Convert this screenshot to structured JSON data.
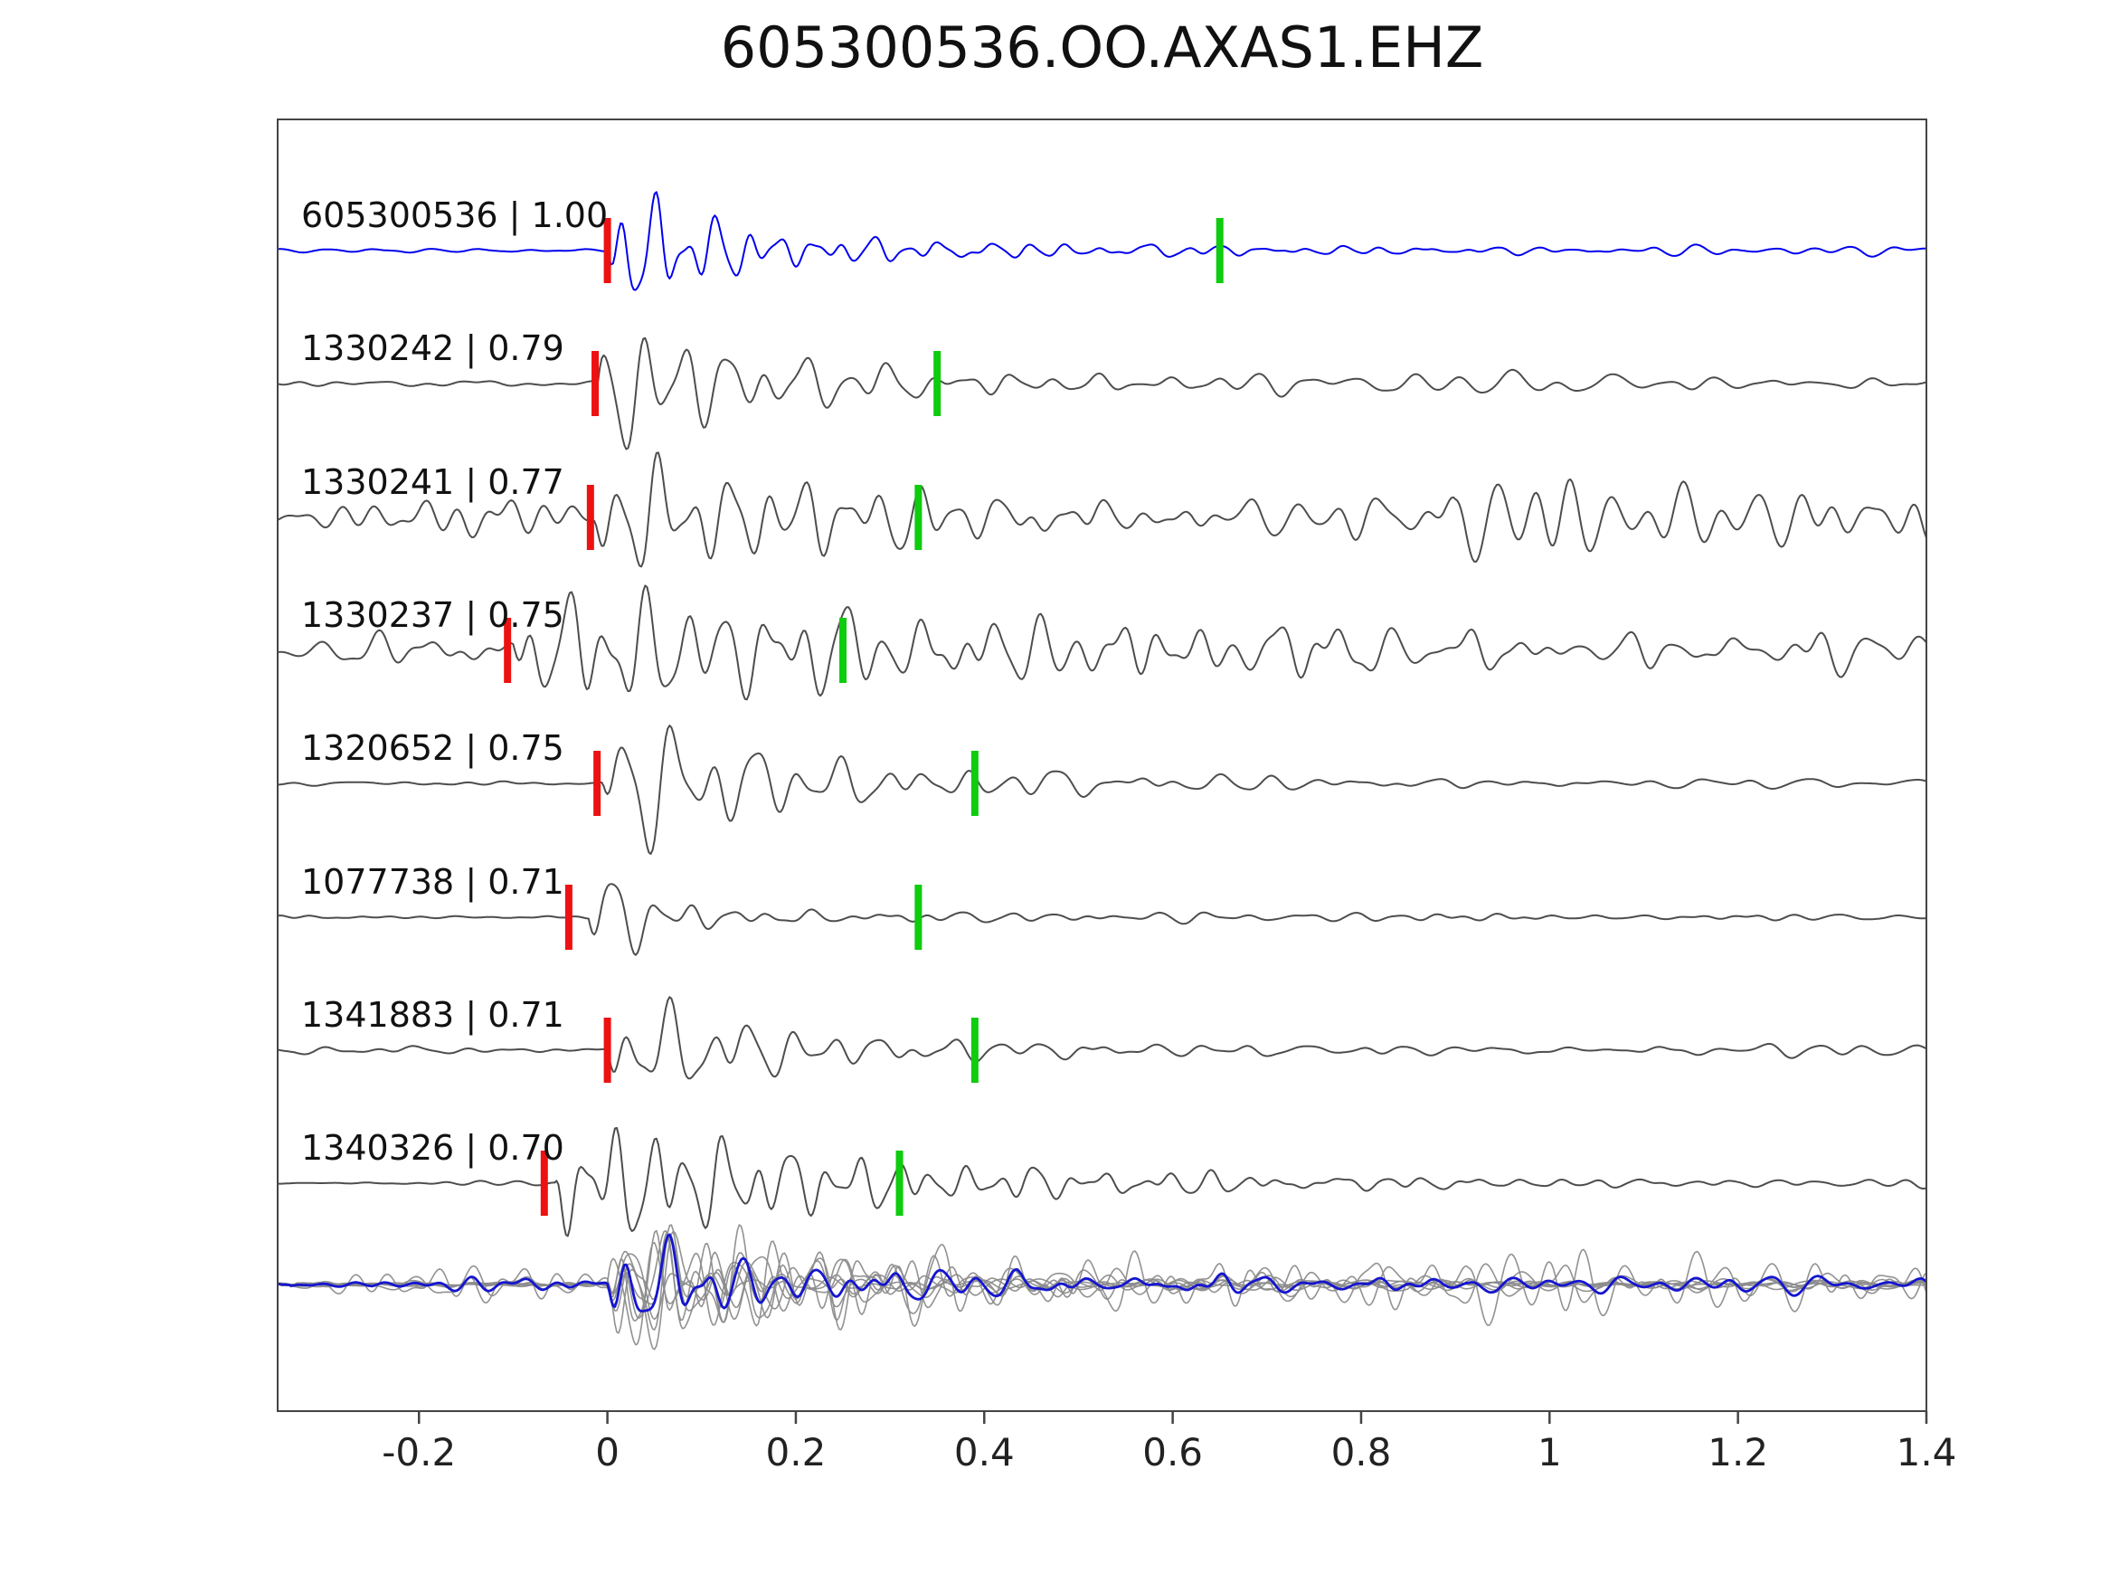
{
  "chart_data": {
    "type": "line",
    "title": "605300536.OO.AXAS1.EHZ",
    "xlabel": "",
    "ylabel": "",
    "xlim": [
      -0.35,
      1.4
    ],
    "grid": false,
    "legend": "none",
    "x_ticks": [
      -0.2,
      0,
      0.2,
      0.4,
      0.6,
      0.8,
      1,
      1.2,
      1.4
    ],
    "x_tick_labels": [
      "-0.2",
      "0",
      "0.2",
      "0.4",
      "0.6",
      "0.8",
      "1",
      "1.2",
      "1.4"
    ],
    "colors": {
      "reference_trace": "#0000ee",
      "match_trace": "#4d4d4d",
      "stack_member": "#8c8c8c",
      "stack_mean": "#1515d0",
      "pick_red": "#ee1111",
      "pick_green": "#0ecc0e",
      "axis": "#444444",
      "tick_label": "#222222",
      "trace_label": "#111111"
    },
    "traces": [
      {
        "id": "605300536",
        "similarity": "1.00",
        "label": "605300536 | 1.00",
        "role": "reference",
        "red_pick": 0.0,
        "green_pick": 0.65,
        "synth": {
          "seed": 11,
          "onset": 0.0,
          "noise": 1.5,
          "amp": 62,
          "freq": 30,
          "decay": 0.1,
          "coda": 0.14,
          "tail": 4
        }
      },
      {
        "id": "1330242",
        "similarity": "0.79",
        "label": "1330242 | 0.79",
        "role": "match",
        "red_pick": -0.013,
        "green_pick": 0.35,
        "synth": {
          "seed": 22,
          "onset": -0.01,
          "noise": 5,
          "amp": 60,
          "freq": 23,
          "decay": 0.13,
          "coda": 0.22,
          "tail": 6
        }
      },
      {
        "id": "1330241",
        "similarity": "0.77",
        "label": "1330241 | 0.77",
        "role": "match",
        "red_pick": -0.018,
        "green_pick": 0.33,
        "synth": {
          "seed": 33,
          "onset": -0.015,
          "noise": 17,
          "amp": 46,
          "freq": 25,
          "decay": 0.22,
          "coda": 0.35,
          "tail": 7,
          "late": {
            "t": 0.9,
            "amp": 50,
            "decay": 0.45
          }
        }
      },
      {
        "id": "1330237",
        "similarity": "0.75",
        "label": "1330237 | 0.75",
        "role": "match",
        "red_pick": -0.106,
        "green_pick": 0.25,
        "synth": {
          "seed": 44,
          "onset": -0.1,
          "noise": 14,
          "amp": 44,
          "freq": 24,
          "decay": 0.55,
          "coda": 0.35,
          "tail": 8
        }
      },
      {
        "id": "1320652",
        "similarity": "0.75",
        "label": "1320652 | 0.75",
        "role": "match",
        "red_pick": -0.011,
        "green_pick": 0.39,
        "synth": {
          "seed": 55,
          "onset": -0.005,
          "noise": 2.5,
          "amp": 62,
          "freq": 22,
          "decay": 0.16,
          "coda": 0.2,
          "tail": 4
        }
      },
      {
        "id": "1077738",
        "similarity": "0.71",
        "label": "1077738 | 0.71",
        "role": "match",
        "red_pick": -0.041,
        "green_pick": 0.33,
        "synth": {
          "seed": 66,
          "onset": -0.02,
          "noise": 2,
          "amp": 58,
          "freq": 24,
          "decay": 0.05,
          "coda": 0.12,
          "tail": 3
        }
      },
      {
        "id": "1341883",
        "similarity": "0.71",
        "label": "1341883 | 0.71",
        "role": "match",
        "red_pick": 0.0,
        "green_pick": 0.39,
        "synth": {
          "seed": 77,
          "onset": 0.0,
          "noise": 3,
          "amp": 52,
          "freq": 23,
          "decay": 0.13,
          "coda": 0.18,
          "tail": 5
        }
      },
      {
        "id": "1340326",
        "similarity": "0.70",
        "label": "1340326 | 0.70",
        "role": "match",
        "red_pick": -0.067,
        "green_pick": 0.31,
        "synth": {
          "seed": 88,
          "onset": -0.055,
          "noise": 2,
          "amp": 56,
          "freq": 27,
          "decay": 0.28,
          "coda": 0.16,
          "tail": 4
        }
      }
    ],
    "stack": {
      "description": "bottom row: all traces aligned on their red picks and overlaid in gray with blue mean trace",
      "member_scale": 0.92,
      "mean_scale": 2.0
    }
  }
}
